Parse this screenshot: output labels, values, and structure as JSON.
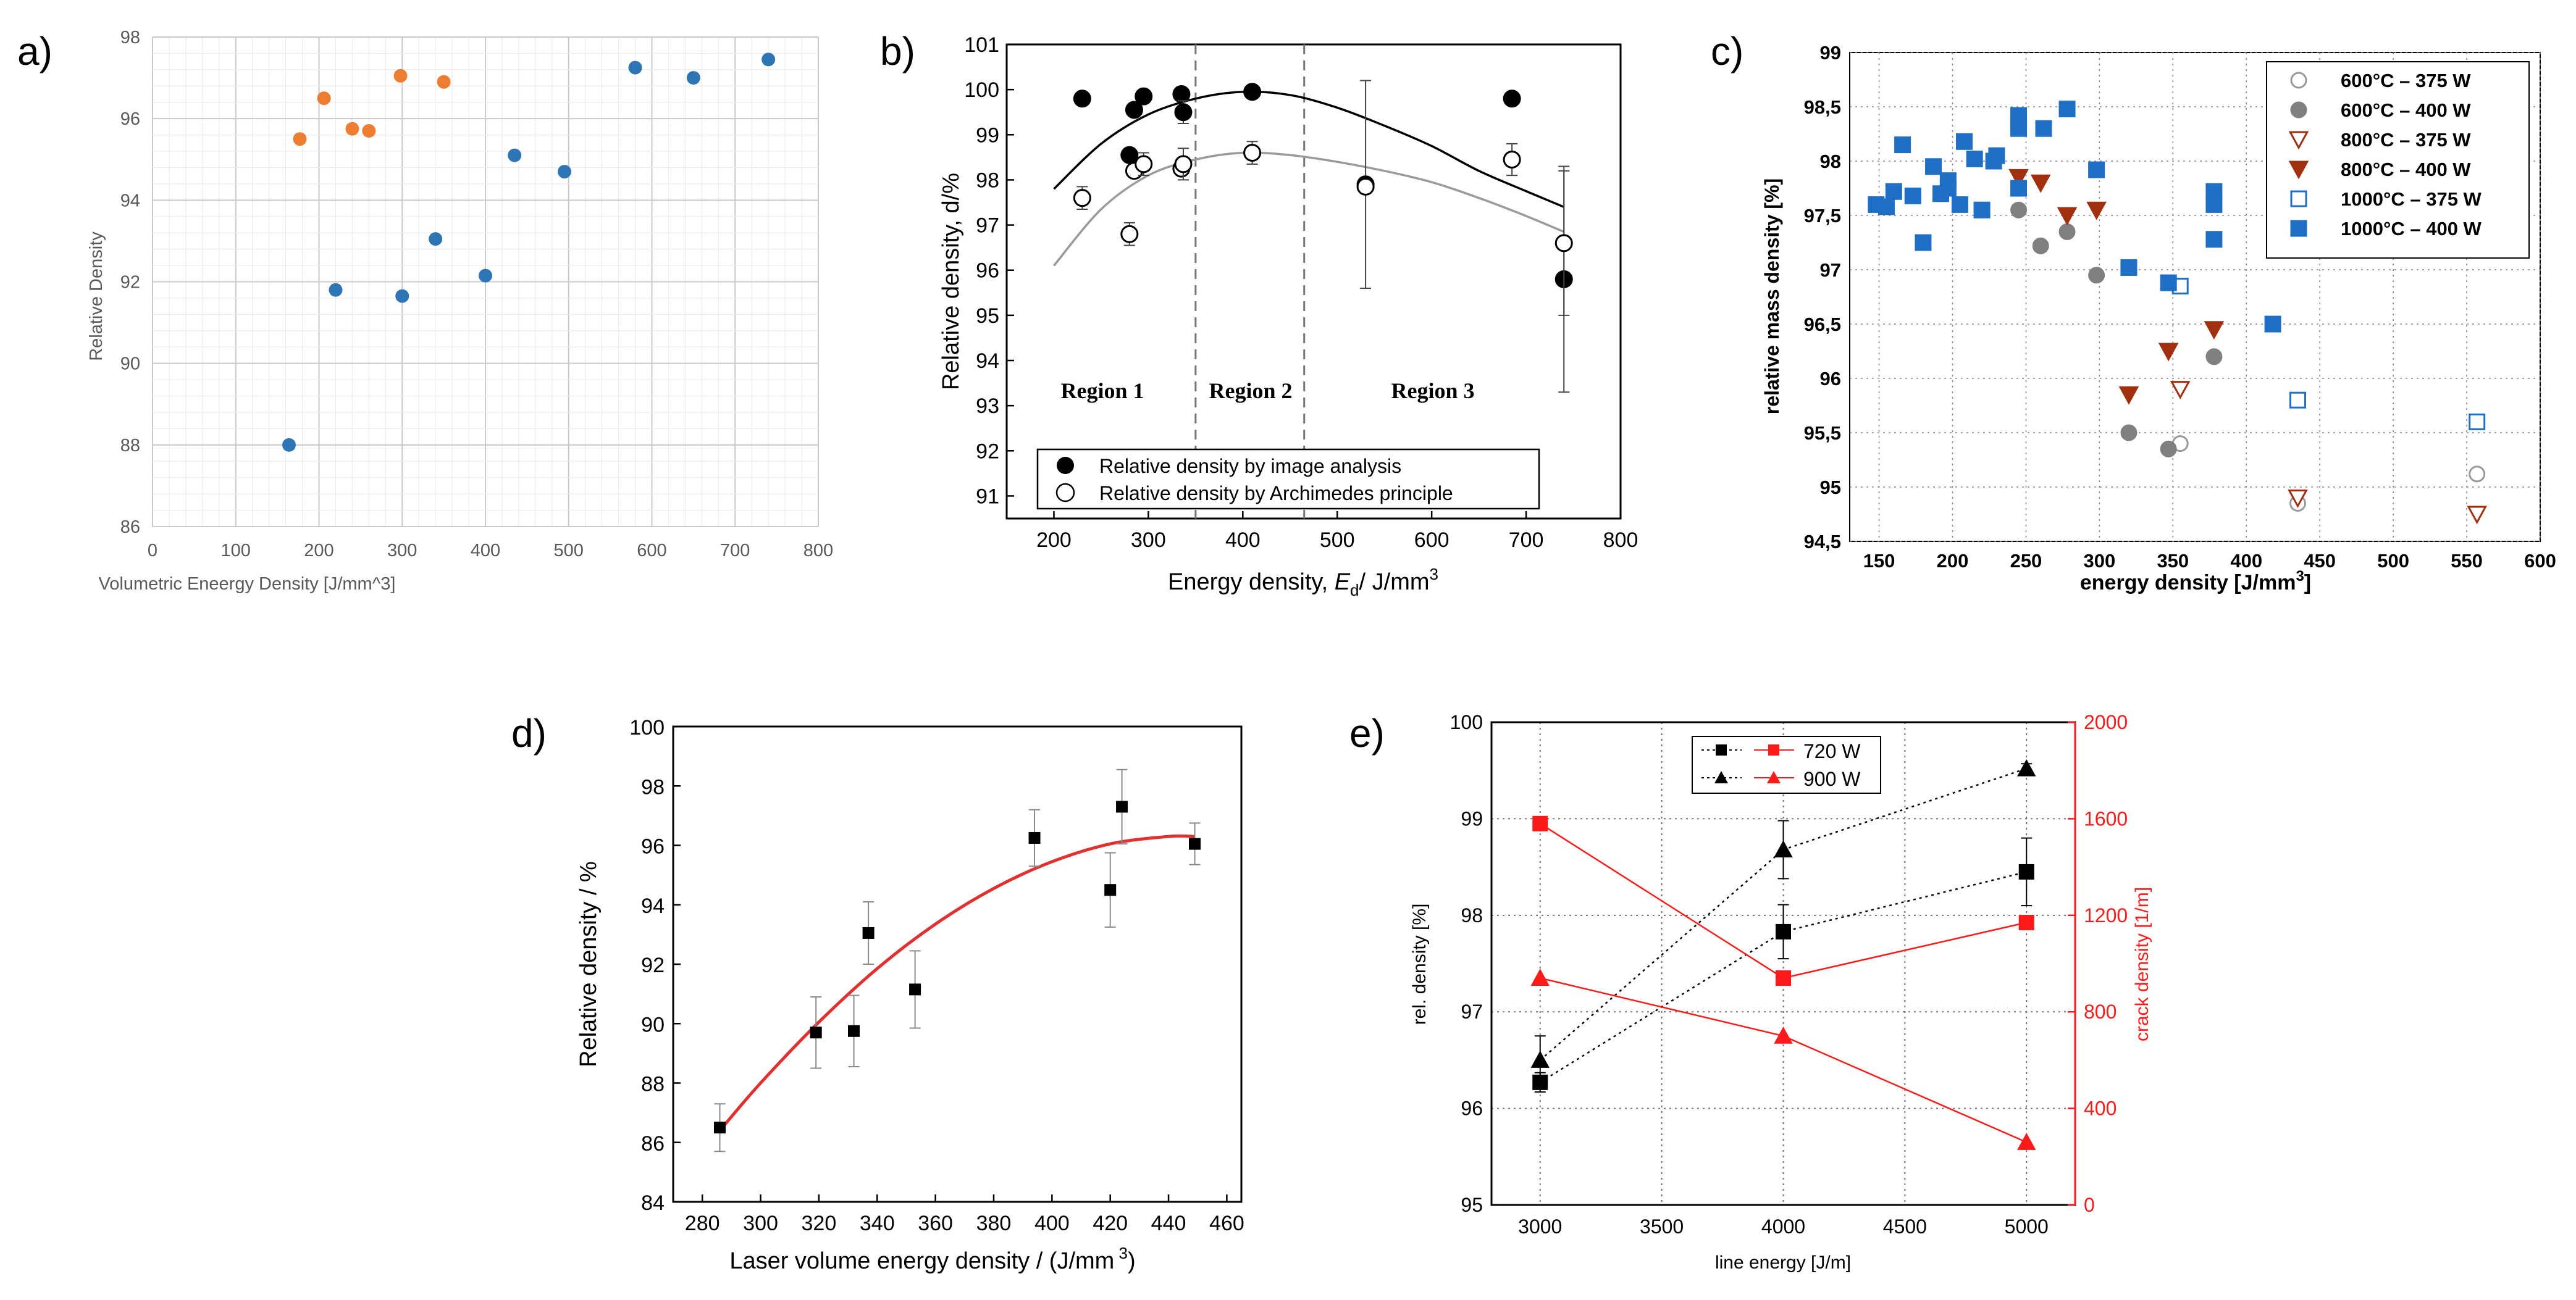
{
  "panel_labels": [
    "a)",
    "b)",
    "c)",
    "d)",
    "e)"
  ],
  "chart_data": [
    {
      "id": "a",
      "type": "scatter",
      "title": "",
      "xlabel": "Volumetric Eneergy Density [J/mm^3]",
      "ylabel": "Relative Density",
      "xlim": [
        0,
        800
      ],
      "ylim": [
        86,
        98
      ],
      "xticks": [
        "0",
        "100",
        "200",
        "300",
        "400",
        "500",
        "600",
        "700",
        "800"
      ],
      "yticks": [
        "86",
        "88",
        "90",
        "92",
        "94",
        "96",
        "98"
      ],
      "grid": true,
      "colors": {
        "blue": "#2e75b6",
        "orange": "#ed7d31"
      },
      "series": [
        {
          "name": "orange",
          "color": "#ed7d31",
          "x": [
            177,
            206,
            240,
            260,
            298,
            350
          ],
          "y": [
            95.5,
            96.5,
            95.75,
            95.7,
            97.05,
            96.9
          ]
        },
        {
          "name": "blue",
          "color": "#2e75b6",
          "x": [
            164,
            220,
            300,
            340,
            400,
            435,
            495,
            580,
            650,
            740
          ],
          "y": [
            88.0,
            91.8,
            91.65,
            93.05,
            92.15,
            95.1,
            94.7,
            97.25,
            97.0,
            97.45
          ]
        }
      ]
    },
    {
      "id": "b",
      "type": "scatter",
      "xlabel": "Energy density, E_d/ J/mm^3",
      "xlabel_parts": [
        "Energy density, ",
        "E",
        "d",
        "/ J/mm",
        "3"
      ],
      "ylabel": "Relative density, d/%",
      "xlim": [
        150,
        800
      ],
      "ylim": [
        90.5,
        101
      ],
      "xticks": [
        "200",
        "300",
        "400",
        "500",
        "600",
        "700",
        "800"
      ],
      "yticks": [
        "91",
        "92",
        "93",
        "94",
        "95",
        "96",
        "97",
        "98",
        "99",
        "100",
        "101"
      ],
      "regions": [
        "Region 1",
        "Region 2",
        "Region 3"
      ],
      "region_bounds": [
        350,
        465
      ],
      "legend": [
        "Relative density by image analysis",
        "Relative density by Archimedes principle"
      ],
      "series": [
        {
          "name": "Relative density by image analysis",
          "marker": "filled-circle",
          "x": [
            230,
            280,
            285,
            295,
            335,
            337,
            410,
            530,
            685,
            740
          ],
          "y": [
            99.8,
            98.55,
            99.55,
            99.85,
            99.9,
            99.5,
            99.95,
            97.9,
            99.8,
            95.8
          ],
          "err": [
            0,
            0.15,
            0,
            0,
            0.1,
            0.25,
            0,
            2.3,
            0,
            2.5
          ]
        },
        {
          "name": "Relative density by Archimedes principle",
          "marker": "open-circle",
          "x": [
            230,
            280,
            285,
            295,
            335,
            337,
            410,
            530,
            685,
            740
          ],
          "y": [
            97.6,
            96.8,
            98.2,
            98.35,
            98.25,
            98.35,
            98.6,
            97.85,
            98.45,
            96.6
          ],
          "err": [
            0.25,
            0.25,
            0,
            0.25,
            0,
            0.35,
            0.25,
            0,
            0.35,
            1.6
          ]
        },
        {
          "name": "fit image analysis",
          "type": "line",
          "x": [
            200,
            250,
            300,
            350,
            400,
            450,
            500,
            550,
            600,
            650,
            700,
            740
          ],
          "y": [
            97.8,
            98.8,
            99.45,
            99.8,
            99.95,
            99.88,
            99.6,
            99.2,
            98.75,
            98.2,
            97.75,
            97.4
          ]
        },
        {
          "name": "fit Archimedes",
          "type": "line",
          "x": [
            200,
            250,
            300,
            350,
            400,
            450,
            500,
            550,
            600,
            650,
            700,
            740
          ],
          "y": [
            96.1,
            97.35,
            98.1,
            98.45,
            98.6,
            98.55,
            98.4,
            98.2,
            97.95,
            97.6,
            97.2,
            96.85
          ]
        }
      ]
    },
    {
      "id": "c",
      "type": "scatter",
      "xlabel": "energy density [J/mm^3]",
      "xlabel_parts": [
        "energy density [J/mm",
        "3",
        "]"
      ],
      "ylabel": "relative mass density [%]",
      "xlim": [
        130,
        600
      ],
      "ylim": [
        94.5,
        99
      ],
      "xticks": [
        "150",
        "200",
        "250",
        "300",
        "350",
        "400",
        "450",
        "500",
        "550",
        "600"
      ],
      "yticks": [
        "94,5",
        "95",
        "95,5",
        "96",
        "96,5",
        "97",
        "97,5",
        "98",
        "98,5",
        "99"
      ],
      "colors": {
        "gray": "#808080",
        "brown": "#a0300f",
        "blue": "#1f6fc7"
      },
      "legend": [
        "600°C – 375 W",
        "600°C – 400 W",
        "800°C – 375 W",
        "800°C – 400 W",
        "1000°C – 375 W",
        "1000°C – 400 W"
      ],
      "series": [
        {
          "name": "600°C – 375 W",
          "marker": "open-circle",
          "color": "#9a9a9a",
          "x": [
            355,
            435,
            557
          ],
          "y": [
            95.4,
            94.85,
            95.12
          ]
        },
        {
          "name": "600°C – 400 W",
          "marker": "filled-circle",
          "color": "#808080",
          "x": [
            245,
            260,
            278,
            298,
            320,
            347,
            378
          ],
          "y": [
            97.55,
            97.22,
            97.35,
            96.95,
            95.5,
            95.35,
            96.2
          ]
        },
        {
          "name": "800°C – 375 W",
          "marker": "open-triangle-down",
          "color": "#a0300f",
          "x": [
            355,
            435,
            557
          ],
          "y": [
            95.9,
            94.9,
            94.75
          ]
        },
        {
          "name": "800°C – 400 W",
          "marker": "filled-triangle-down",
          "color": "#a0300f",
          "x": [
            245,
            260,
            278,
            298,
            320,
            347,
            378
          ],
          "y": [
            97.85,
            97.8,
            97.5,
            97.55,
            95.85,
            96.25,
            96.45
          ]
        },
        {
          "name": "1000°C – 375 W",
          "marker": "open-square",
          "color": "#1f6fc7",
          "x": [
            355,
            435,
            557
          ],
          "y": [
            96.85,
            95.8,
            95.6
          ]
        },
        {
          "name": "1000°C – 400 W",
          "marker": "filled-square",
          "color": "#1f6fc7",
          "x": [
            148,
            155,
            160,
            166,
            173,
            180,
            187,
            192,
            197,
            197,
            205,
            208,
            215,
            220,
            228,
            230,
            245,
            245,
            245,
            245,
            262,
            278,
            298,
            320,
            347,
            378,
            378,
            378,
            418
          ],
          "y": [
            97.6,
            97.58,
            97.72,
            98.15,
            97.68,
            97.25,
            97.95,
            97.7,
            97.75,
            97.82,
            97.6,
            98.18,
            98.02,
            97.55,
            98.0,
            98.05,
            98.42,
            98.3,
            98.35,
            97.75,
            98.3,
            98.48,
            97.92,
            97.02,
            96.88,
            97.72,
            97.6,
            97.28,
            96.5
          ]
        }
      ]
    },
    {
      "id": "d",
      "type": "scatter",
      "xlabel": "Laser volume energy density / (J/mm 3)",
      "xlabel_parts": [
        "Laser volume energy density / (J/mm",
        " 3",
        ")"
      ],
      "ylabel": "Relative density / %",
      "xlim": [
        270,
        465
      ],
      "ylim": [
        84,
        100
      ],
      "xticks": [
        "280",
        "300",
        "320",
        "340",
        "360",
        "380",
        "400",
        "420",
        "440",
        "460"
      ],
      "yticks": [
        "84",
        "86",
        "88",
        "90",
        "92",
        "94",
        "96",
        "98",
        "100"
      ],
      "colors": {
        "fit": "#e03030"
      },
      "series": [
        {
          "name": "measured",
          "marker": "filled-square",
          "x": [
            286,
            319,
            332,
            337,
            353,
            394,
            420,
            424,
            449
          ],
          "y": [
            86.5,
            89.7,
            89.75,
            93.05,
            91.15,
            96.25,
            94.5,
            97.3,
            96.05
          ],
          "err": [
            0.8,
            1.2,
            1.2,
            1.05,
            1.3,
            0.95,
            1.25,
            1.25,
            0.7
          ]
        },
        {
          "name": "fit",
          "type": "line",
          "color": "#e03030",
          "x": [
            286,
            300,
            320,
            340,
            360,
            380,
            400,
            420,
            440,
            449
          ],
          "y": [
            86.4,
            88.0,
            90.05,
            91.85,
            93.35,
            94.55,
            95.45,
            96.05,
            96.3,
            96.3
          ]
        }
      ]
    },
    {
      "id": "e",
      "type": "line",
      "xlabel": "line energy [J/m]",
      "ylabel": "rel. density [%]",
      "ylabel_right": "crack density [1/m]",
      "xlim": [
        2800,
        5200
      ],
      "ylim": [
        95,
        100
      ],
      "ylim_right": [
        0,
        2000
      ],
      "xticks": [
        "3000",
        "3500",
        "4000",
        "4500",
        "5000"
      ],
      "yticks": [
        "95",
        "96",
        "97",
        "98",
        "99",
        "100"
      ],
      "yticks_right": [
        "0",
        "400",
        "800",
        "1200",
        "1600",
        "2000"
      ],
      "colors": {
        "black": "#000000",
        "red": "#ff1a1a"
      },
      "legend": [
        "720 W",
        "900 W"
      ],
      "series": [
        {
          "name": "720 W rel. density",
          "axis": "left",
          "marker": "filled-square",
          "color": "#000000",
          "dash": true,
          "x": [
            3000,
            4000,
            5000
          ],
          "y": [
            96.27,
            97.83,
            98.45
          ],
          "err": [
            0.1,
            0.28,
            0.35
          ]
        },
        {
          "name": "900 W rel. density",
          "axis": "left",
          "marker": "filled-triangle",
          "color": "#000000",
          "dash": true,
          "x": [
            3000,
            4000,
            5000
          ],
          "y": [
            96.5,
            98.68,
            99.52
          ],
          "err": [
            0.25,
            0.3,
            0.05
          ]
        },
        {
          "name": "720 W crack density",
          "axis": "right",
          "marker": "filled-square",
          "color": "#ff1a1a",
          "x": [
            3000,
            4000,
            5000
          ],
          "y": [
            1580,
            940,
            1170
          ]
        },
        {
          "name": "900 W crack density",
          "axis": "right",
          "marker": "filled-triangle",
          "color": "#ff1a1a",
          "x": [
            3000,
            4000,
            5000
          ],
          "y": [
            940,
            700,
            260
          ]
        }
      ]
    }
  ]
}
